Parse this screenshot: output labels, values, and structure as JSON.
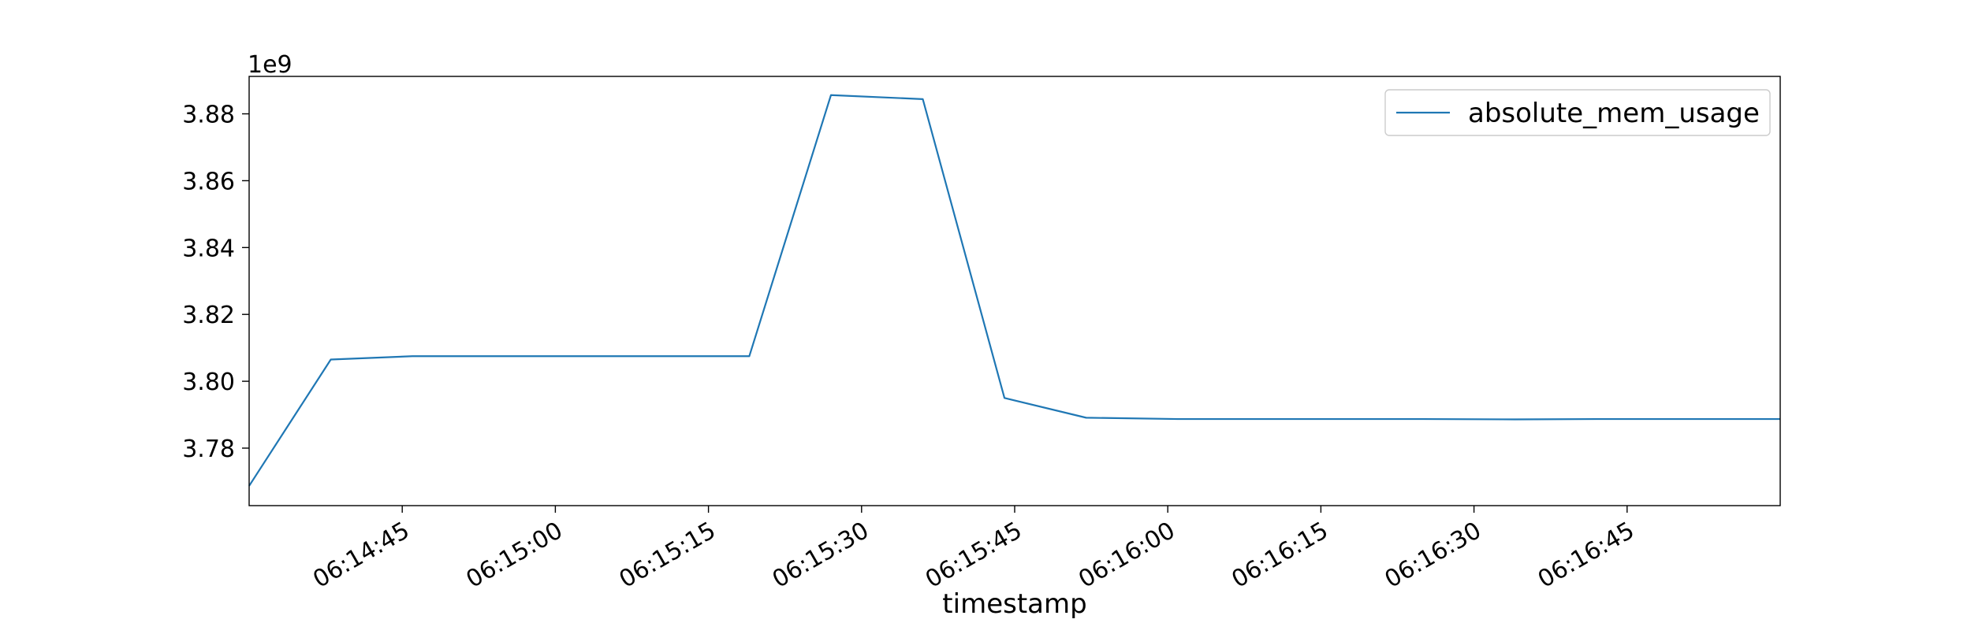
{
  "chart_data": {
    "type": "line",
    "xlabel": "timestamp",
    "ylabel": "",
    "y_offset_label": "1e9",
    "x_tick_labels": [
      "06:14:45",
      "06:15:00",
      "06:15:15",
      "06:15:30",
      "06:15:45",
      "06:16:00",
      "06:16:15",
      "06:16:30",
      "06:16:45"
    ],
    "x_tick_values": [
      "06:14:45",
      "06:15:00",
      "06:15:15",
      "06:15:30",
      "06:15:45",
      "06:16:00",
      "06:16:15",
      "06:16:30",
      "06:16:45"
    ],
    "y_tick_labels": [
      "3.78",
      "3.80",
      "3.82",
      "3.84",
      "3.86",
      "3.88"
    ],
    "y_tick_values": [
      3780000000,
      3800000000,
      3820000000,
      3840000000,
      3860000000,
      3880000000
    ],
    "xlim": [
      "06:14:30",
      "06:17:00"
    ],
    "ylim": [
      3762800000,
      3891200000
    ],
    "grid": false,
    "legend_position": "upper right",
    "series": [
      {
        "name": "absolute_mem_usage",
        "color": "#1f77b4",
        "x": [
          "06:14:30",
          "06:14:38",
          "06:14:46",
          "06:14:54",
          "06:15:02",
          "06:15:10",
          "06:15:19",
          "06:15:27",
          "06:15:36",
          "06:15:44",
          "06:15:52",
          "06:16:01",
          "06:16:09",
          "06:16:17",
          "06:16:25",
          "06:16:34",
          "06:16:42",
          "06:16:50",
          "06:17:00"
        ],
        "y": [
          3768700000,
          3806500000,
          3807500000,
          3807500000,
          3807500000,
          3807500000,
          3807500000,
          3885600000,
          3884400000,
          3795000000,
          3789100000,
          3788700000,
          3788700000,
          3788700000,
          3788700000,
          3788600000,
          3788700000,
          3788700000,
          3788700000
        ]
      }
    ]
  }
}
